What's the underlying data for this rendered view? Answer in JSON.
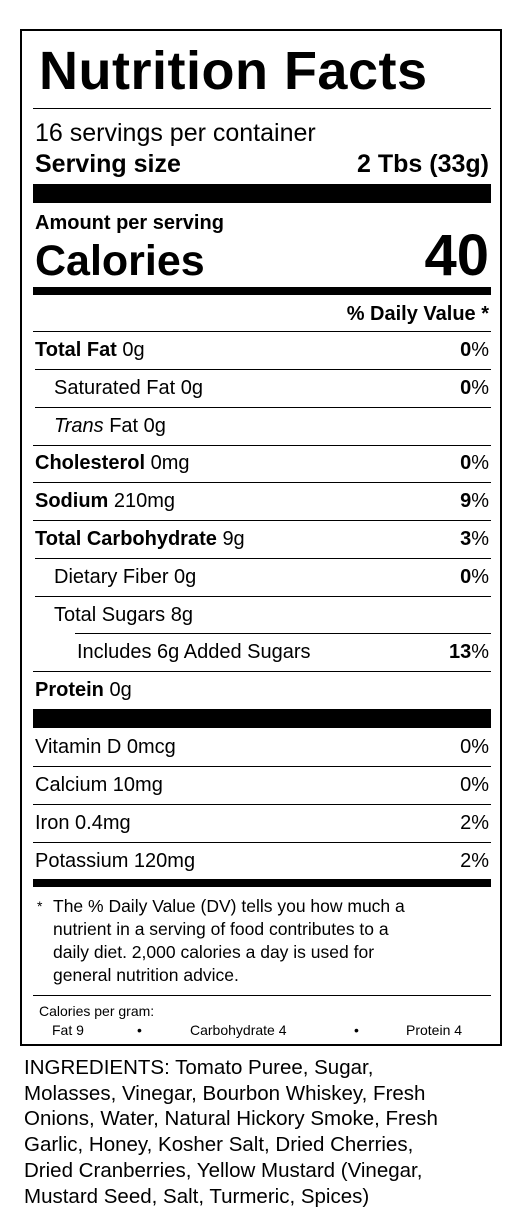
{
  "label": {
    "title": "Nutrition Facts",
    "servings_per_container": "16 servings per container",
    "serving_size_label": "Serving size",
    "serving_size_value": "2 Tbs (33g)",
    "amount_per_serving": "Amount per serving",
    "calories_label": "Calories",
    "calories_value": "40",
    "daily_value_header": "% Daily Value *",
    "rows": [
      {
        "name": "Total Fat",
        "amount": "0g",
        "dv_num": "0",
        "dv_pct": "%"
      },
      {
        "name": "Saturated Fat",
        "amount": "0g",
        "dv_num": "0",
        "dv_pct": "%"
      },
      {
        "name": "Trans",
        "name_suffix": "Fat",
        "amount": "0g"
      },
      {
        "name": "Cholesterol",
        "amount": "0mg",
        "dv_num": "0",
        "dv_pct": "%"
      },
      {
        "name": "Sodium",
        "amount": "210mg",
        "dv_num": "9",
        "dv_pct": "%"
      },
      {
        "name": "Total Carbohydrate",
        "amount": "9g",
        "dv_num": "3",
        "dv_pct": "%"
      },
      {
        "name": "Dietary Fiber",
        "amount": "0g",
        "dv_num": "0",
        "dv_pct": "%"
      },
      {
        "name": "Total Sugars",
        "amount": "8g"
      },
      {
        "name": "Includes 6g Added Sugars",
        "dv_num": "13",
        "dv_pct": "%"
      },
      {
        "name": "Protein",
        "amount": "0g"
      }
    ],
    "vitamins": [
      {
        "text": "Vitamin D 0mcg",
        "dv": "0%"
      },
      {
        "text": "Calcium 10mg",
        "dv": "0%"
      },
      {
        "text": "Iron 0.4mg",
        "dv": "2%"
      },
      {
        "text": "Potassium 120mg",
        "dv": "2%"
      }
    ],
    "footnote_star": "*",
    "footnote_lines": [
      "The % Daily Value (DV) tells you how much a",
      "nutrient in a serving of food contributes to a",
      "daily diet. 2,000 calories a day is used for",
      "general nutrition advice."
    ],
    "calories_per_gram_label": "Calories per gram:",
    "calories_per_gram": {
      "fat": "Fat 9",
      "carb": "Carbohydrate 4",
      "protein": "Protein 4",
      "bullet": "•"
    }
  },
  "ingredients_lines": [
    "INGREDIENTS: Tomato Puree, Sugar,",
    "Molasses, Vinegar, Bourbon Whiskey, Fresh",
    "Onions, Water, Natural Hickory Smoke, Fresh",
    "Garlic, Honey, Kosher Salt, Dried Cherries,",
    "Dried Cranberries, Yellow Mustard (Vinegar,",
    "Mustard Seed, Salt, Turmeric, Spices)"
  ]
}
